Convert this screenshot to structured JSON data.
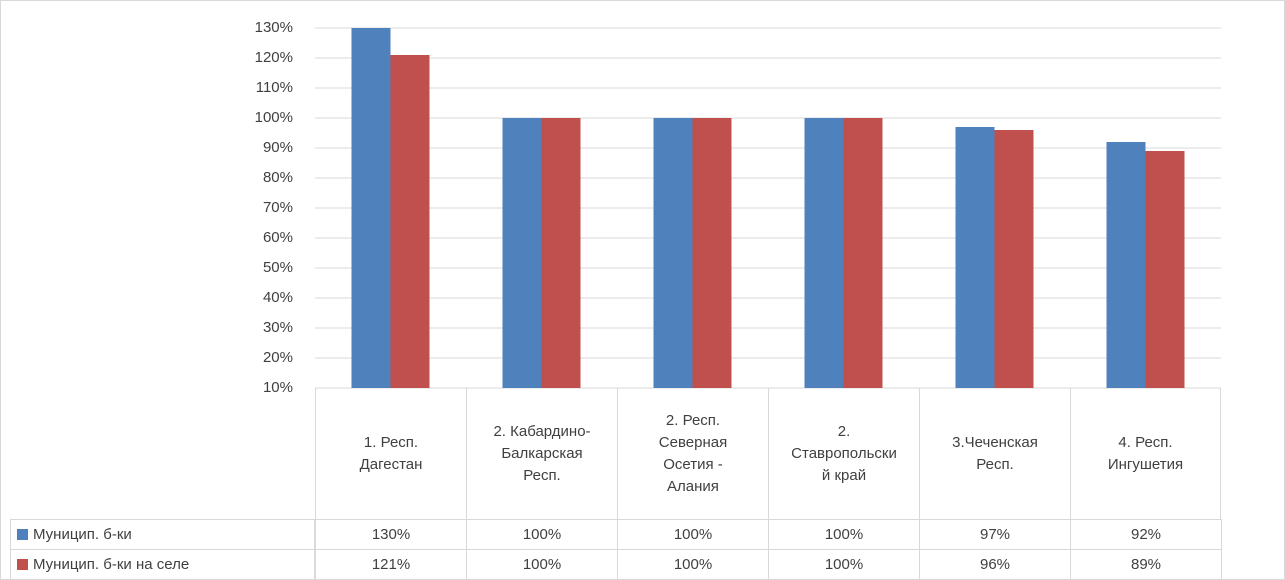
{
  "chart_data": {
    "type": "bar",
    "categories": [
      "1. Респ. Дагестан",
      "2. Кабардино-Балкарская Респ.",
      "2. Респ. Северная Осетия - Алания",
      "2. Ставропольский край",
      "3.Чеченская Респ.",
      "4. Респ. Ингушетия"
    ],
    "series": [
      {
        "name": "Муницип. б-ки",
        "color": "#4f81bd",
        "values": [
          130,
          100,
          100,
          100,
          97,
          92
        ],
        "value_labels": [
          "130%",
          "100%",
          "100%",
          "100%",
          "97%",
          "92%"
        ]
      },
      {
        "name": "Муницип. б-ки на селе",
        "color": "#c0504d",
        "values": [
          121,
          100,
          100,
          100,
          96,
          89
        ],
        "value_labels": [
          "121%",
          "100%",
          "100%",
          "100%",
          "96%",
          "89%"
        ]
      }
    ],
    "ylim": [
      10,
      130
    ],
    "yticks": [
      {
        "value": 10,
        "label": "10%"
      },
      {
        "value": 20,
        "label": "20%"
      },
      {
        "value": 30,
        "label": "30%"
      },
      {
        "value": 40,
        "label": "40%"
      },
      {
        "value": 50,
        "label": "50%"
      },
      {
        "value": 60,
        "label": "60%"
      },
      {
        "value": 70,
        "label": "70%"
      },
      {
        "value": 80,
        "label": "80%"
      },
      {
        "value": 90,
        "label": "90%"
      },
      {
        "value": 100,
        "label": "100%"
      },
      {
        "value": 110,
        "label": "110%"
      },
      {
        "value": 120,
        "label": "120%"
      },
      {
        "value": 130,
        "label": "130%"
      }
    ],
    "grid": true
  }
}
